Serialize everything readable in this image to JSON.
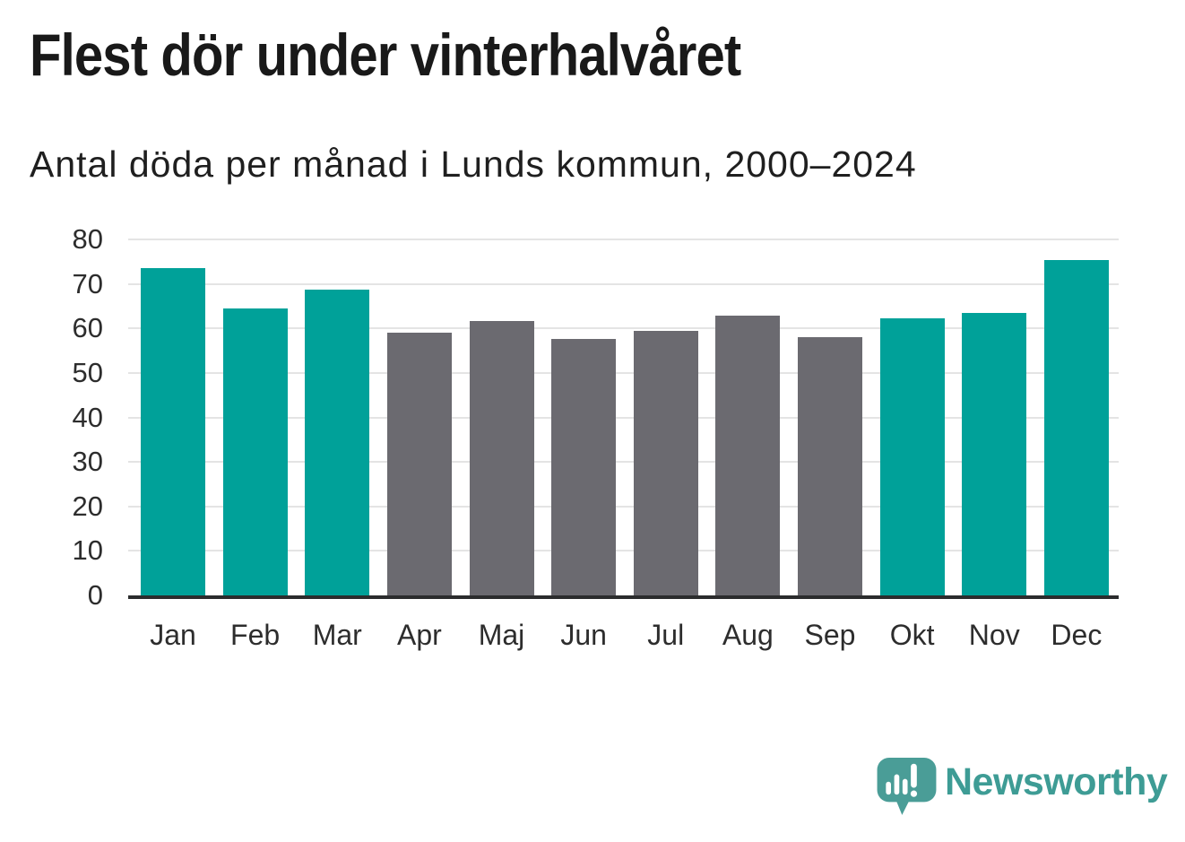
{
  "header": {
    "title": "Flest dör under vinterhalvåret",
    "subtitle": "Antal döda per månad i Lunds kommun, 2000–2024"
  },
  "chart_data": {
    "type": "bar",
    "title": "Flest dör under vinterhalvåret",
    "subtitle": "Antal döda per månad i Lunds kommun, 2000–2024",
    "categories": [
      "Jan",
      "Feb",
      "Mar",
      "Apr",
      "Maj",
      "Jun",
      "Jul",
      "Aug",
      "Sep",
      "Okt",
      "Nov",
      "Dec"
    ],
    "values": [
      73.5,
      64.5,
      68.8,
      59.0,
      61.7,
      57.6,
      59.5,
      62.8,
      58.0,
      62.2,
      63.4,
      75.4
    ],
    "bar_groups": [
      "winter",
      "winter",
      "winter",
      "summer",
      "summer",
      "summer",
      "summer",
      "summer",
      "summer",
      "winter",
      "winter",
      "winter"
    ],
    "group_colors": {
      "winter": "#00a199",
      "summer": "#6b6a70"
    },
    "xlabel": "",
    "ylabel": "",
    "ylim": [
      0,
      80
    ],
    "yticks": [
      0,
      10,
      20,
      30,
      40,
      50,
      60,
      70,
      80
    ],
    "grid": "horizontal",
    "gridline_color": "#e4e4e4",
    "axis_color": "#2b2c2d",
    "legend": "none"
  },
  "footer": {
    "brand": "Newsworthy",
    "brand_color": "#3e9c95",
    "icon": "newsworthy-speech-bubble-chart-icon",
    "icon_color": "#4a9d97"
  }
}
